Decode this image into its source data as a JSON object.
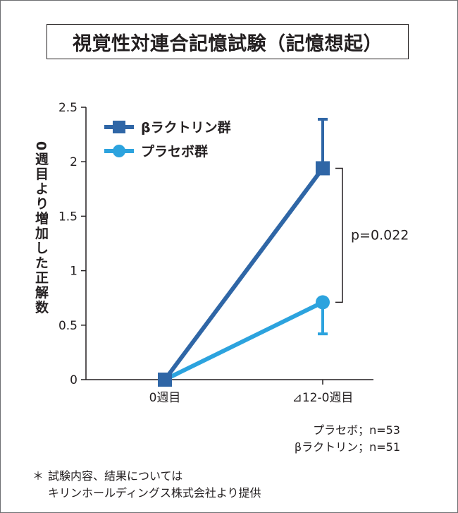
{
  "title": "視覚性対連合記憶試験（記憶想起）",
  "chart_data": {
    "type": "line",
    "ylabel": "0週目より増加した正解数",
    "categories": [
      "0週目",
      "⊿12-0週目"
    ],
    "ylim": [
      0,
      2.5
    ],
    "yticks": [
      "0",
      "0.5",
      "1",
      "1.5",
      "2",
      "2.5"
    ],
    "ytick_values": [
      0,
      0.5,
      1,
      1.5,
      2,
      2.5
    ],
    "legend_position": "top-left",
    "series": [
      {
        "name": "βラクトリン群",
        "color": "#2f66a6",
        "marker": "square",
        "values": [
          0,
          1.94
        ],
        "error_upper": [
          null,
          2.39
        ],
        "error_lower": [
          null,
          null
        ]
      },
      {
        "name": "プラセボ群",
        "color": "#2ca3de",
        "marker": "circle",
        "values": [
          0,
          0.71
        ],
        "error_upper": [
          null,
          null
        ],
        "error_lower": [
          null,
          0.42
        ]
      }
    ],
    "annotation": {
      "text": "p=0.022"
    }
  },
  "notes": [
    "プラセボ；n=53",
    "βラクトリン；n=51"
  ],
  "footnote": {
    "mark": "＊",
    "lines": [
      "試験内容、結果については",
      "キリンホールディングス株式会社より提供"
    ]
  }
}
